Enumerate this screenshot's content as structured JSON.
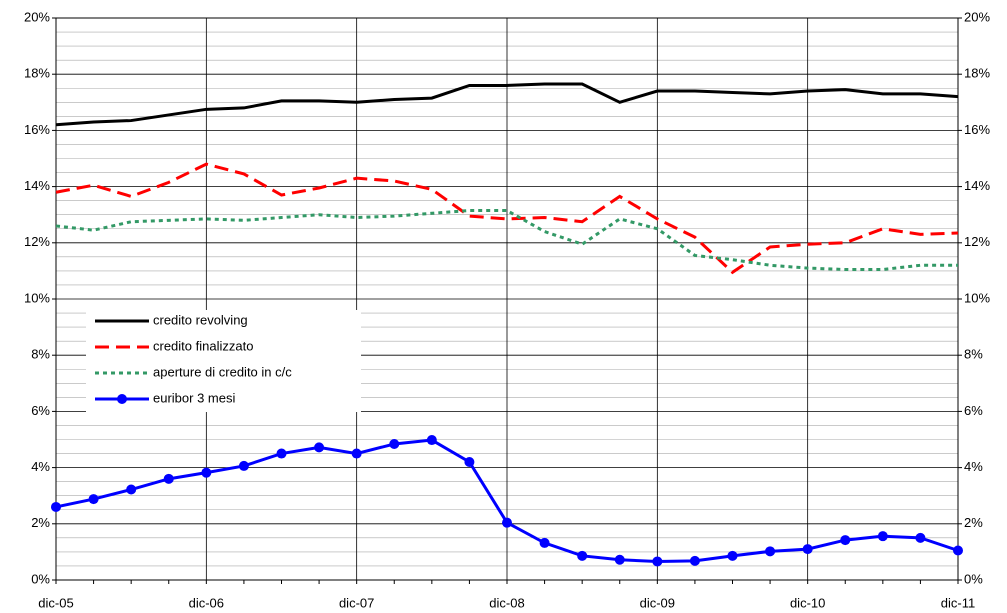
{
  "chart_data": {
    "type": "line",
    "categories": [
      "dic-05",
      null,
      null,
      null,
      "dic-06",
      null,
      null,
      null,
      "dic-07",
      null,
      null,
      null,
      "dic-08",
      null,
      null,
      null,
      "dic-09",
      null,
      null,
      null,
      "dic-10",
      null,
      null,
      null,
      "dic-11"
    ],
    "series": [
      {
        "name": "credito revolving",
        "color": "#000000",
        "dash": "solid",
        "values": [
          16.2,
          16.3,
          16.35,
          16.55,
          16.75,
          16.8,
          17.05,
          17.05,
          17.0,
          17.1,
          17.15,
          17.6,
          17.6,
          17.65,
          17.65,
          17.0,
          17.4,
          17.4,
          17.35,
          17.3,
          17.4,
          17.45,
          17.3,
          17.3,
          17.2
        ]
      },
      {
        "name": "credito finalizzato",
        "color": "#ff0000",
        "dash": "dashed",
        "values": [
          13.8,
          14.05,
          13.65,
          14.15,
          14.8,
          14.45,
          13.7,
          13.95,
          14.3,
          14.2,
          13.9,
          12.95,
          12.85,
          12.9,
          12.75,
          13.65,
          12.85,
          12.2,
          10.95,
          11.85,
          11.95,
          12.0,
          12.5,
          12.3,
          12.35
        ]
      },
      {
        "name": "aperture di credito in c/c",
        "color": "#339966",
        "dash": "dotted",
        "values": [
          12.6,
          12.45,
          12.75,
          12.8,
          12.85,
          12.8,
          12.9,
          13.0,
          12.9,
          12.95,
          13.05,
          13.15,
          13.15,
          12.4,
          11.95,
          12.85,
          12.5,
          11.55,
          11.4,
          11.2,
          11.1,
          11.05,
          11.05,
          11.2,
          11.2
        ]
      },
      {
        "name": "euribor 3 mesi",
        "color": "#0000ff",
        "dash": "solid",
        "marker": "circle",
        "values": [
          2.6,
          2.88,
          3.22,
          3.6,
          3.82,
          4.06,
          4.5,
          4.72,
          4.5,
          4.84,
          4.98,
          4.2,
          2.04,
          1.32,
          0.86,
          0.72,
          0.66,
          0.68,
          0.86,
          1.02,
          1.1,
          1.42,
          1.56,
          1.5,
          1.05
        ]
      }
    ],
    "ylim": [
      0,
      20
    ],
    "yticks": [
      {
        "value": 0,
        "label": "0%"
      },
      {
        "value": 2,
        "label": "2%"
      },
      {
        "value": 4,
        "label": "4%"
      },
      {
        "value": 6,
        "label": "6%"
      },
      {
        "value": 8,
        "label": "8%"
      },
      {
        "value": 10,
        "label": "10%"
      },
      {
        "value": 12,
        "label": "12%"
      },
      {
        "value": 14,
        "label": "14%"
      },
      {
        "value": 16,
        "label": "16%"
      },
      {
        "value": 18,
        "label": "18%"
      },
      {
        "value": 20,
        "label": "20%"
      }
    ],
    "y2lim": [
      0,
      20
    ],
    "y2ticks": [
      {
        "value": 0,
        "label": "0%"
      },
      {
        "value": 2,
        "label": "2%"
      },
      {
        "value": 4,
        "label": "4%"
      },
      {
        "value": 6,
        "label": "6%"
      },
      {
        "value": 8,
        "label": "8%"
      },
      {
        "value": 10,
        "label": "10%"
      },
      {
        "value": 12,
        "label": "12%"
      },
      {
        "value": 14,
        "label": "14%"
      },
      {
        "value": 16,
        "label": "16%"
      },
      {
        "value": 18,
        "label": "18%"
      },
      {
        "value": 20,
        "label": "20%"
      }
    ],
    "minor_yticks": [
      0.5,
      1,
      1.5,
      2.5,
      3,
      3.5,
      4.5,
      5,
      5.5,
      6.5,
      7,
      7.5,
      8.5,
      9,
      9.5,
      10.5,
      11,
      11.5,
      12.5,
      13,
      13.5,
      14.5,
      15,
      15.5,
      16.5,
      17,
      17.5,
      18.5,
      19,
      19.5
    ],
    "grid": true,
    "legend": "left"
  }
}
